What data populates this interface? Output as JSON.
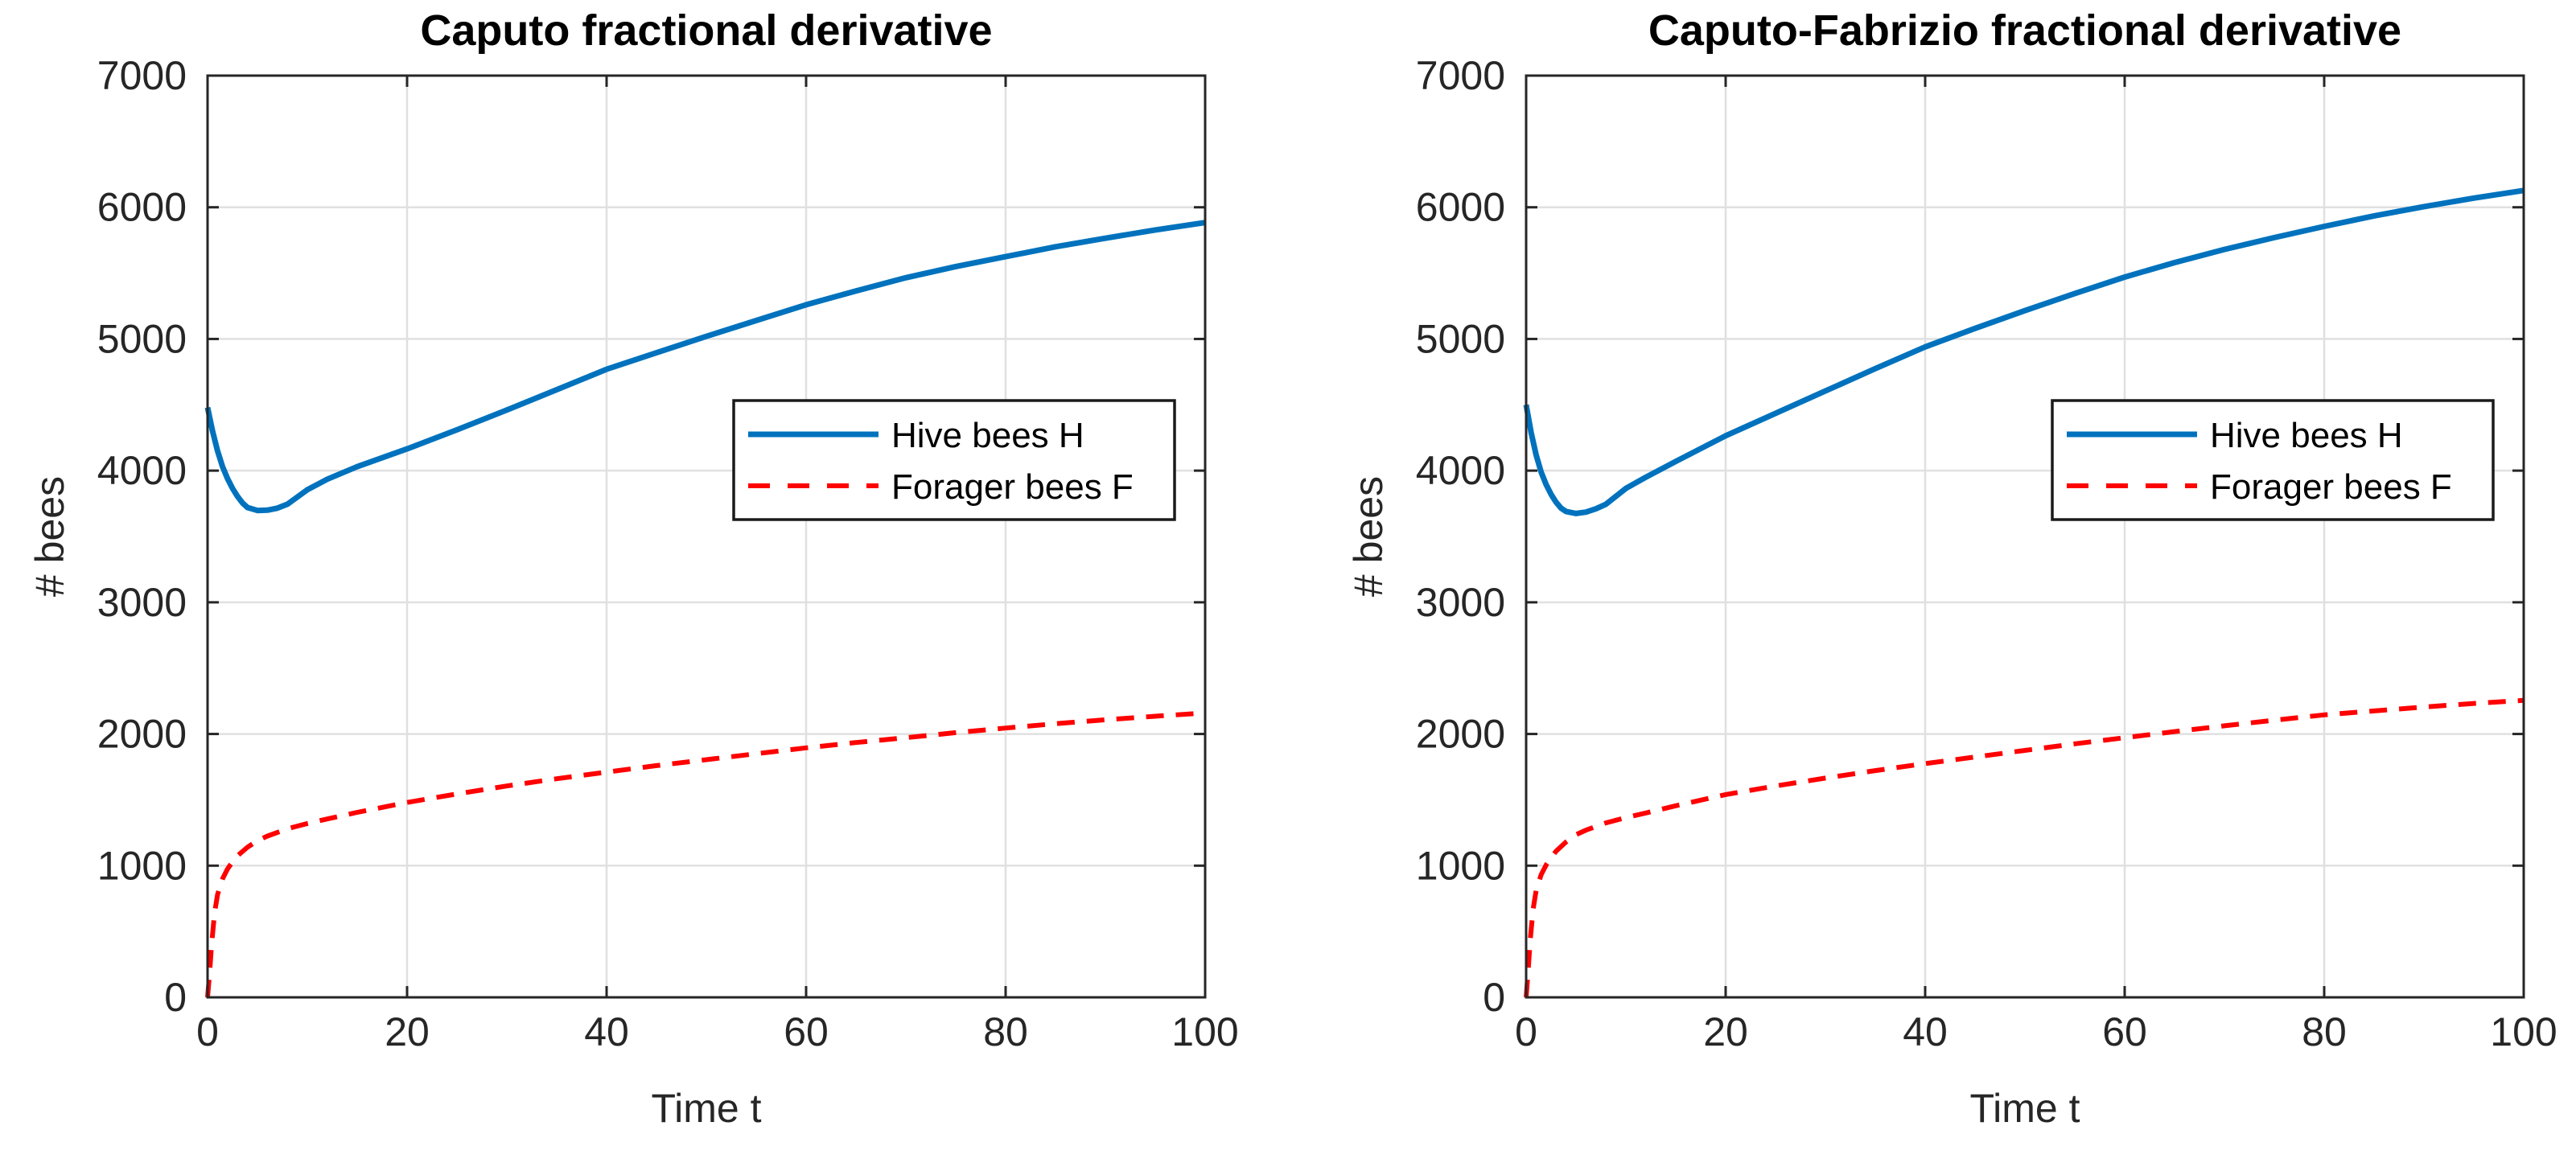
{
  "figure": {
    "background": "#ffffff"
  },
  "colors": {
    "hive_blue": "#0072BD",
    "forager_red": "#FF0000",
    "grid": "#E0E0E0",
    "axis": "#262626",
    "tick_label": "#262626",
    "title_text": "#000000",
    "legend_border": "#1A1A1A",
    "legend_bg": "#FFFFFF"
  },
  "chart_data": [
    {
      "type": "line",
      "title": "Caputo fractional derivative",
      "xlabel": "Time t",
      "ylabel": "# bees",
      "xlim": [
        0,
        100
      ],
      "ylim": [
        0,
        7000
      ],
      "xticks": [
        0,
        20,
        40,
        60,
        80,
        100
      ],
      "yticks": [
        0,
        1000,
        2000,
        3000,
        4000,
        5000,
        6000,
        7000
      ],
      "grid": true,
      "legend_position": "inside-middle-right",
      "legend_entries": [
        "Hive bees H",
        "Forager bees F"
      ],
      "series": [
        {
          "name": "Hive bees H",
          "color": "#0072BD",
          "style": "solid",
          "width": 7,
          "x": [
            0,
            0.5,
            1,
            1.5,
            2,
            2.5,
            3,
            3.5,
            4,
            5,
            6,
            7,
            8,
            10,
            12,
            15,
            20,
            25,
            30,
            35,
            40,
            45,
            50,
            55,
            60,
            65,
            70,
            75,
            80,
            85,
            90,
            95,
            100
          ],
          "y": [
            4480,
            4300,
            4150,
            4030,
            3940,
            3865,
            3805,
            3755,
            3720,
            3697,
            3700,
            3715,
            3745,
            3855,
            3935,
            4030,
            4165,
            4310,
            4460,
            4615,
            4770,
            4895,
            5020,
            5140,
            5260,
            5365,
            5465,
            5550,
            5625,
            5700,
            5765,
            5828,
            5884
          ]
        },
        {
          "name": "Forager bees F",
          "color": "#FF0000",
          "style": "dashed",
          "width": 6,
          "x": [
            0,
            0.2,
            0.4,
            0.7,
            1,
            1.5,
            2,
            2.5,
            3,
            4,
            5,
            6,
            8,
            10,
            12,
            15,
            20,
            25,
            30,
            35,
            40,
            45,
            50,
            55,
            60,
            65,
            70,
            75,
            80,
            85,
            90,
            95,
            100
          ],
          "y": [
            0,
            180,
            400,
            640,
            780,
            900,
            975,
            1030,
            1075,
            1140,
            1190,
            1225,
            1280,
            1320,
            1355,
            1405,
            1480,
            1545,
            1605,
            1660,
            1710,
            1760,
            1805,
            1850,
            1895,
            1935,
            1972,
            2010,
            2045,
            2078,
            2108,
            2135,
            2160
          ]
        }
      ]
    },
    {
      "type": "line",
      "title": "Caputo-Fabrizio fractional derivative",
      "xlabel": "Time t",
      "ylabel": "# bees",
      "xlim": [
        0,
        100
      ],
      "ylim": [
        0,
        7000
      ],
      "xticks": [
        0,
        20,
        40,
        60,
        80,
        100
      ],
      "yticks": [
        0,
        1000,
        2000,
        3000,
        4000,
        5000,
        6000,
        7000
      ],
      "grid": true,
      "legend_position": "inside-middle-right",
      "legend_entries": [
        "Hive bees H",
        "Forager bees F"
      ],
      "series": [
        {
          "name": "Hive bees H",
          "color": "#0072BD",
          "style": "solid",
          "width": 7,
          "x": [
            0,
            0.5,
            1,
            1.5,
            2,
            2.5,
            3,
            3.5,
            4,
            5,
            6,
            7,
            8,
            10,
            12,
            15,
            20,
            25,
            30,
            35,
            40,
            45,
            50,
            55,
            60,
            65,
            70,
            75,
            80,
            85,
            90,
            95,
            100
          ],
          "y": [
            4500,
            4290,
            4120,
            3990,
            3895,
            3820,
            3760,
            3715,
            3690,
            3675,
            3685,
            3710,
            3745,
            3865,
            3950,
            4070,
            4265,
            4435,
            4605,
            4775,
            4940,
            5080,
            5215,
            5345,
            5470,
            5580,
            5680,
            5770,
            5855,
            5935,
            6005,
            6070,
            6128
          ]
        },
        {
          "name": "Forager bees F",
          "color": "#FF0000",
          "style": "dashed",
          "width": 6,
          "x": [
            0,
            0.2,
            0.4,
            0.7,
            1,
            1.5,
            2,
            2.5,
            3,
            4,
            5,
            6,
            8,
            10,
            12,
            15,
            20,
            25,
            30,
            35,
            40,
            45,
            50,
            55,
            60,
            65,
            70,
            75,
            80,
            85,
            90,
            95,
            100
          ],
          "y": [
            0,
            200,
            430,
            670,
            810,
            930,
            1005,
            1060,
            1110,
            1180,
            1235,
            1270,
            1325,
            1365,
            1400,
            1455,
            1540,
            1605,
            1665,
            1722,
            1775,
            1825,
            1875,
            1925,
            1972,
            2018,
            2062,
            2105,
            2145,
            2175,
            2205,
            2232,
            2255
          ]
        }
      ]
    }
  ]
}
